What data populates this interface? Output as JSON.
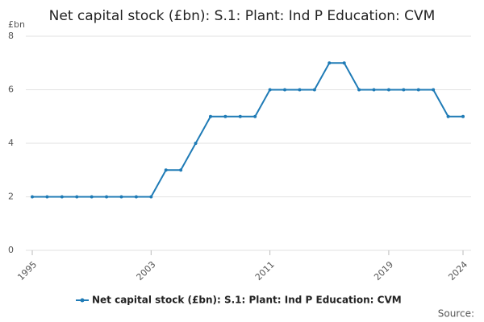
{
  "chart_data": {
    "type": "line",
    "title": "Net capital stock (£bn): S.1: Plant: Ind P Education: CVM",
    "y_label": "£bn",
    "source": "Source:",
    "x": [
      1995,
      1996,
      1997,
      1998,
      1999,
      2000,
      2001,
      2002,
      2003,
      2004,
      2005,
      2006,
      2007,
      2008,
      2009,
      2010,
      2011,
      2012,
      2013,
      2014,
      2015,
      2016,
      2017,
      2018,
      2019,
      2020,
      2021,
      2022,
      2023,
      2024
    ],
    "series": [
      {
        "name": "Net capital stock (£bn): S.1: Plant: Ind P Education: CVM",
        "color": "#1f7bb6",
        "values": [
          2,
          2,
          2,
          2,
          2,
          2,
          2,
          2,
          2,
          3,
          3,
          4,
          5,
          5,
          5,
          5,
          6,
          6,
          6,
          6,
          7,
          7,
          6,
          6,
          6,
          6,
          6,
          6,
          5,
          5
        ]
      }
    ],
    "xlim": [
      1995,
      2024
    ],
    "xticks": [
      1995,
      2003,
      2011,
      2019,
      2024
    ],
    "ylim": [
      0,
      8
    ],
    "yticks": [
      0,
      2,
      4,
      6,
      8
    ],
    "grid": true
  }
}
